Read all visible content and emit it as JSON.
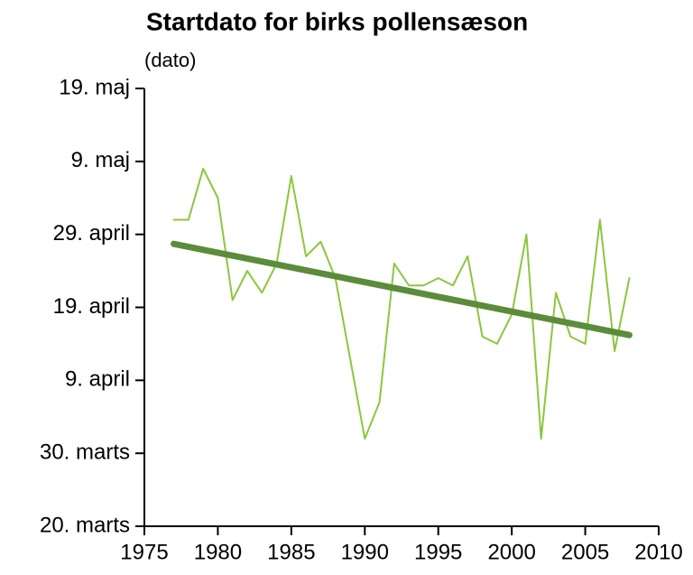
{
  "chart_data": {
    "type": "line",
    "title": "Startdato for birks pollensæson",
    "subtitle": "(dato)",
    "xlim": [
      1975,
      2010
    ],
    "xticks": [
      1975,
      1980,
      1985,
      1990,
      1995,
      2000,
      2005,
      2010
    ],
    "ylim": [
      79,
      139
    ],
    "yticks": [
      {
        "value": 79,
        "label": "20. marts"
      },
      {
        "value": 89,
        "label": "30. marts"
      },
      {
        "value": 99,
        "label": "9. april"
      },
      {
        "value": 109,
        "label": "19. april"
      },
      {
        "value": 119,
        "label": "29. april"
      },
      {
        "value": 129,
        "label": "9. maj"
      },
      {
        "value": 139,
        "label": "19. maj"
      }
    ],
    "series": [
      {
        "color": "#8cc63e",
        "width": 2,
        "x": [
          1977,
          1978,
          1979,
          1980,
          1981,
          1982,
          1983,
          1984,
          1985,
          1986,
          1987,
          1988,
          1989,
          1990,
          1991,
          1992,
          1993,
          1994,
          1995,
          1996,
          1997,
          1998,
          1999,
          2000,
          2001,
          2002,
          2003,
          2004,
          2005,
          2006,
          2007,
          2008
        ],
        "values": [
          121,
          121,
          128,
          124,
          110,
          114,
          111,
          115,
          127,
          116,
          118,
          113,
          102,
          91,
          96,
          115,
          112,
          112,
          113,
          112,
          116,
          105,
          104,
          108,
          119,
          91,
          111,
          105,
          104,
          121,
          103,
          113
        ]
      },
      {
        "color": "#5b8c3a",
        "width": 7,
        "x": [
          1977,
          2008
        ],
        "values": [
          117.7,
          105.2
        ]
      }
    ]
  }
}
